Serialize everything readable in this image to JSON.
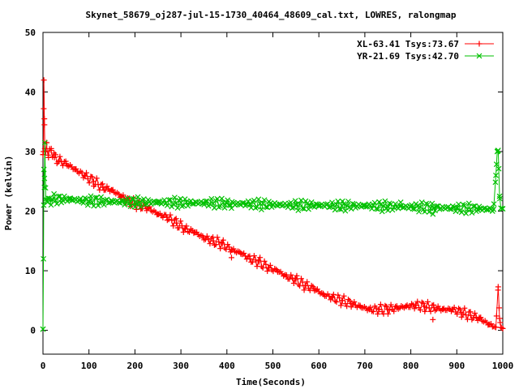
{
  "chart_data": {
    "type": "line",
    "title": "Skynet_58679_oj287-jul-15-1730_40464_48609_cal.txt, LOWRES, ralongmap",
    "xlabel": "Time(Seconds)",
    "ylabel": "Power (kelvin)",
    "xlim": [
      0,
      1000
    ],
    "ylim": [
      -4,
      50
    ],
    "xticks": [
      0,
      100,
      200,
      300,
      400,
      500,
      600,
      700,
      800,
      900,
      1000
    ],
    "yticks": [
      0,
      10,
      20,
      30,
      40,
      50
    ],
    "grid": false,
    "legend_position": "top-right",
    "series": [
      {
        "name": "XL-63.41 Tsys:73.67",
        "color": "#ff0000",
        "marker": "plus",
        "points": [
          [
            0,
            29.5
          ],
          [
            1,
            30
          ],
          [
            2,
            42
          ],
          [
            3,
            35.5
          ],
          [
            4,
            30.5
          ],
          [
            6,
            30
          ],
          [
            8,
            31.5
          ],
          [
            12,
            29
          ],
          [
            18,
            30.5
          ],
          [
            25,
            29
          ],
          [
            35,
            28.5
          ],
          [
            50,
            28
          ],
          [
            70,
            27
          ],
          [
            90,
            26
          ],
          [
            110,
            25
          ],
          [
            130,
            24
          ],
          [
            150,
            23.5
          ],
          [
            170,
            22.5
          ],
          [
            190,
            21.5
          ],
          [
            210,
            21
          ],
          [
            230,
            20.5
          ],
          [
            250,
            19.5
          ],
          [
            270,
            19
          ],
          [
            290,
            18
          ],
          [
            310,
            17
          ],
          [
            330,
            16.5
          ],
          [
            350,
            15.5
          ],
          [
            370,
            15
          ],
          [
            390,
            14.5
          ],
          [
            410,
            13.5
          ],
          [
            430,
            13
          ],
          [
            450,
            12
          ],
          [
            470,
            11.5
          ],
          [
            490,
            10.5
          ],
          [
            510,
            10
          ],
          [
            530,
            9
          ],
          [
            550,
            8.5
          ],
          [
            570,
            7.5
          ],
          [
            590,
            7
          ],
          [
            610,
            6
          ],
          [
            630,
            5.5
          ],
          [
            650,
            5
          ],
          [
            670,
            4.5
          ],
          [
            690,
            4
          ],
          [
            710,
            3.5
          ],
          [
            730,
            3.5
          ],
          [
            750,
            3.5
          ],
          [
            770,
            3.8
          ],
          [
            790,
            4
          ],
          [
            810,
            4.2
          ],
          [
            830,
            4
          ],
          [
            850,
            3.8
          ],
          [
            870,
            3.5
          ],
          [
            890,
            3.5
          ],
          [
            910,
            3
          ],
          [
            930,
            2.5
          ],
          [
            950,
            2
          ],
          [
            970,
            1
          ],
          [
            985,
            0.5
          ],
          [
            990,
            7.3
          ],
          [
            993,
            2
          ],
          [
            996,
            0.5
          ],
          [
            1000,
            0.3
          ]
        ],
        "outliers": [
          [
            410,
            12.2
          ],
          [
            848,
            1.8
          ]
        ]
      },
      {
        "name": "YR-21.69 Tsys:42.70",
        "color": "#00c000",
        "marker": "cross",
        "points": [
          [
            0,
            0.2
          ],
          [
            1,
            12
          ],
          [
            2,
            27
          ],
          [
            3,
            24
          ],
          [
            4,
            31.5
          ],
          [
            6,
            22
          ],
          [
            10,
            21.5
          ],
          [
            20,
            22
          ],
          [
            40,
            22
          ],
          [
            60,
            22
          ],
          [
            80,
            21.8
          ],
          [
            100,
            21.7
          ],
          [
            150,
            21.6
          ],
          [
            200,
            21.5
          ],
          [
            250,
            21.5
          ],
          [
            300,
            21.4
          ],
          [
            350,
            21.4
          ],
          [
            400,
            21.3
          ],
          [
            450,
            21.2
          ],
          [
            500,
            21.1
          ],
          [
            550,
            21
          ],
          [
            600,
            21
          ],
          [
            650,
            20.9
          ],
          [
            700,
            20.9
          ],
          [
            750,
            20.8
          ],
          [
            800,
            20.7
          ],
          [
            850,
            20.6
          ],
          [
            900,
            20.5
          ],
          [
            950,
            20.4
          ],
          [
            980,
            20.3
          ],
          [
            985,
            26
          ],
          [
            988,
            30
          ],
          [
            990,
            30.2
          ],
          [
            993,
            22.5
          ],
          [
            996,
            20.5
          ],
          [
            1000,
            20.4
          ]
        ],
        "outliers": [
          [
            778,
            21.5
          ],
          [
            848,
            19.5
          ],
          [
            410,
            20.5
          ]
        ]
      }
    ]
  }
}
